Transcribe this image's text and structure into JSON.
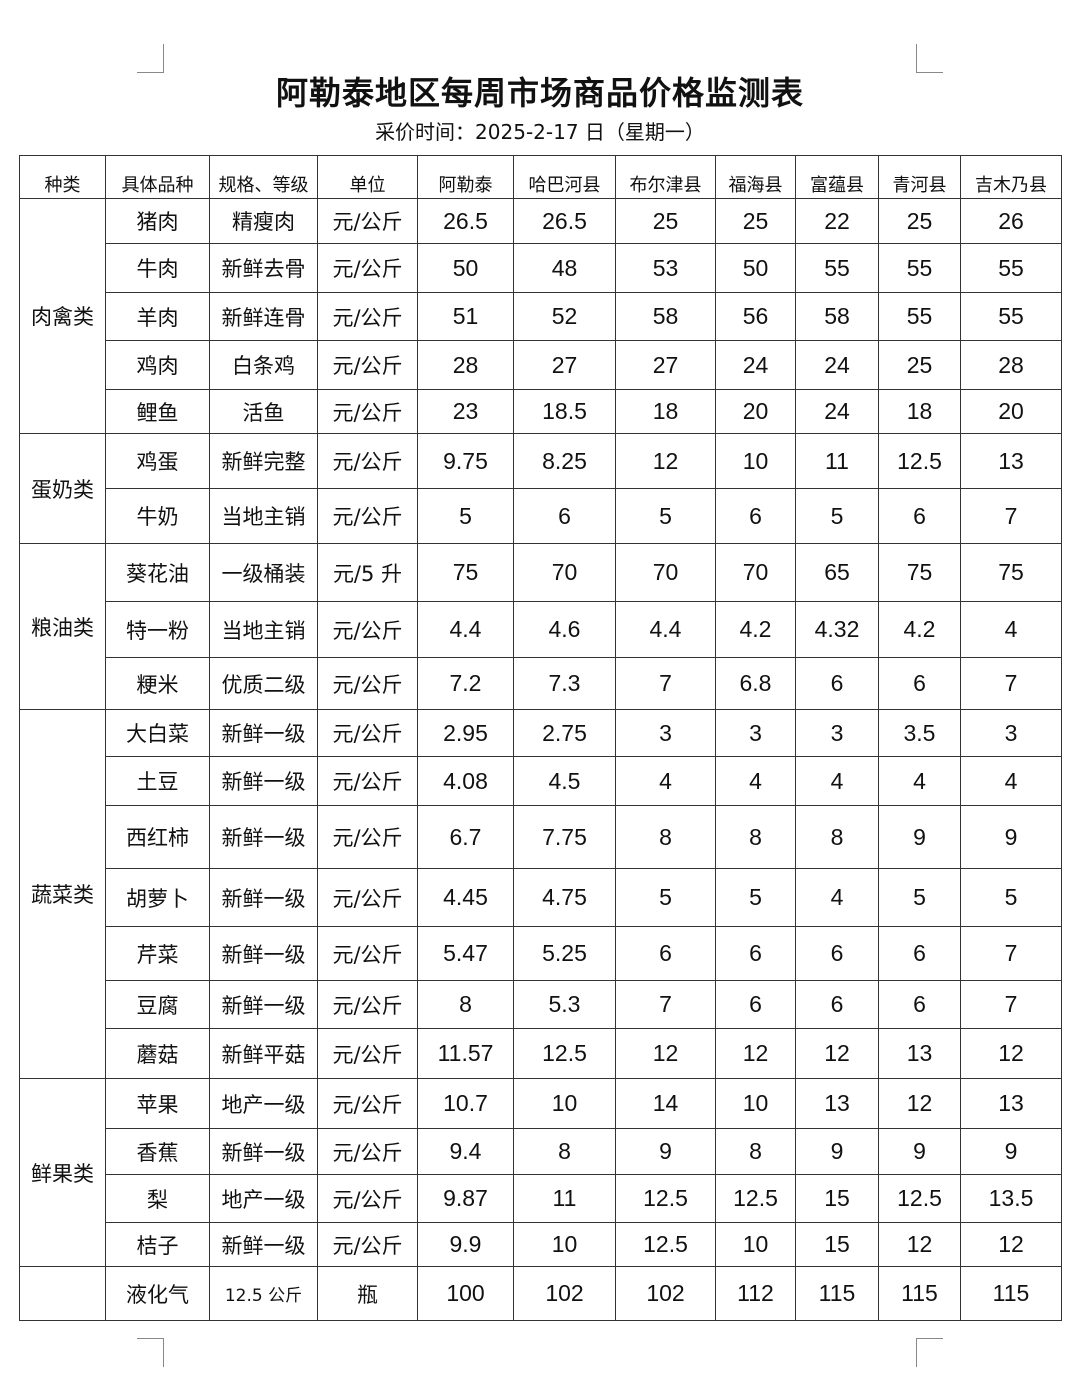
{
  "title": "阿勒泰地区每周市场商品价格监测表",
  "subtitle": "采价时间：2025-2-17 日（星期一）",
  "headers": [
    "种类",
    "具体品种",
    "规格、等级",
    "单位",
    "阿勒泰",
    "哈巴河县",
    "布尔津县",
    "福海县",
    "富蕴县",
    "青河县",
    "吉木乃县"
  ],
  "categories": [
    {
      "name": "肉禽类",
      "items": [
        {
          "name": "猪肉",
          "spec": "精瘦肉",
          "unit": "元/公斤",
          "prices": [
            "26.5",
            "26.5",
            "25",
            "25",
            "22",
            "25",
            "26"
          ]
        },
        {
          "name": "牛肉",
          "spec": "新鲜去骨",
          "unit": "元/公斤",
          "prices": [
            "50",
            "48",
            "53",
            "50",
            "55",
            "55",
            "55"
          ]
        },
        {
          "name": "羊肉",
          "spec": "新鲜连骨",
          "unit": "元/公斤",
          "prices": [
            "51",
            "52",
            "58",
            "56",
            "58",
            "55",
            "55"
          ]
        },
        {
          "name": "鸡肉",
          "spec": "白条鸡",
          "unit": "元/公斤",
          "prices": [
            "28",
            "27",
            "27",
            "24",
            "24",
            "25",
            "28"
          ]
        },
        {
          "name": "鲤鱼",
          "spec": "活鱼",
          "unit": "元/公斤",
          "prices": [
            "23",
            "18.5",
            "18",
            "20",
            "24",
            "18",
            "20"
          ]
        }
      ]
    },
    {
      "name": "蛋奶类",
      "items": [
        {
          "name": "鸡蛋",
          "spec": "新鲜完整",
          "unit": "元/公斤",
          "prices": [
            "9.75",
            "8.25",
            "12",
            "10",
            "11",
            "12.5",
            "13"
          ]
        },
        {
          "name": "牛奶",
          "spec": "当地主销",
          "unit": "元/公斤",
          "prices": [
            "5",
            "6",
            "5",
            "6",
            "5",
            "6",
            "7"
          ]
        }
      ]
    },
    {
      "name": "粮油类",
      "items": [
        {
          "name": "葵花油",
          "spec": "一级桶装",
          "unit": "元/5 升",
          "prices": [
            "75",
            "70",
            "70",
            "70",
            "65",
            "75",
            "75"
          ]
        },
        {
          "name": "特一粉",
          "spec": "当地主销",
          "unit": "元/公斤",
          "prices": [
            "4.4",
            "4.6",
            "4.4",
            "4.2",
            "4.32",
            "4.2",
            "4"
          ]
        },
        {
          "name": "粳米",
          "spec": "优质二级",
          "unit": "元/公斤",
          "prices": [
            "7.2",
            "7.3",
            "7",
            "6.8",
            "6",
            "6",
            "7"
          ]
        }
      ]
    },
    {
      "name": "蔬菜类",
      "items": [
        {
          "name": "大白菜",
          "spec": "新鲜一级",
          "unit": "元/公斤",
          "prices": [
            "2.95",
            "2.75",
            "3",
            "3",
            "3",
            "3.5",
            "3"
          ]
        },
        {
          "name": "土豆",
          "spec": "新鲜一级",
          "unit": "元/公斤",
          "prices": [
            "4.08",
            "4.5",
            "4",
            "4",
            "4",
            "4",
            "4"
          ]
        },
        {
          "name": "西红柿",
          "spec": "新鲜一级",
          "unit": "元/公斤",
          "prices": [
            "6.7",
            "7.75",
            "8",
            "8",
            "8",
            "9",
            "9"
          ]
        },
        {
          "name": "胡萝卜",
          "spec": "新鲜一级",
          "unit": "元/公斤",
          "prices": [
            "4.45",
            "4.75",
            "5",
            "5",
            "4",
            "5",
            "5"
          ]
        },
        {
          "name": "芹菜",
          "spec": "新鲜一级",
          "unit": "元/公斤",
          "prices": [
            "5.47",
            "5.25",
            "6",
            "6",
            "6",
            "6",
            "7"
          ]
        },
        {
          "name": "豆腐",
          "spec": "新鲜一级",
          "unit": "元/公斤",
          "prices": [
            "8",
            "5.3",
            "7",
            "6",
            "6",
            "6",
            "7"
          ]
        },
        {
          "name": "蘑菇",
          "spec": "新鲜平菇",
          "unit": "元/公斤",
          "prices": [
            "11.57",
            "12.5",
            "12",
            "12",
            "12",
            "13",
            "12"
          ]
        }
      ]
    },
    {
      "name": "鲜果类",
      "items": [
        {
          "name": "苹果",
          "spec": "地产一级",
          "unit": "元/公斤",
          "prices": [
            "10.7",
            "10",
            "14",
            "10",
            "13",
            "12",
            "13"
          ]
        },
        {
          "name": "香蕉",
          "spec": "新鲜一级",
          "unit": "元/公斤",
          "prices": [
            "9.4",
            "8",
            "9",
            "8",
            "9",
            "9",
            "9"
          ]
        },
        {
          "name": "梨",
          "spec": "地产一级",
          "unit": "元/公斤",
          "prices": [
            "9.87",
            "11",
            "12.5",
            "12.5",
            "15",
            "12.5",
            "13.5"
          ]
        },
        {
          "name": "桔子",
          "spec": "新鲜一级",
          "unit": "元/公斤",
          "prices": [
            "9.9",
            "10",
            "12.5",
            "10",
            "15",
            "12",
            "12"
          ]
        }
      ]
    },
    {
      "name": "",
      "items": [
        {
          "name": "液化气",
          "spec": "12.5 公斤",
          "unit": "瓶",
          "prices": [
            "100",
            "102",
            "102",
            "112",
            "115",
            "115",
            "115"
          ]
        }
      ]
    }
  ]
}
